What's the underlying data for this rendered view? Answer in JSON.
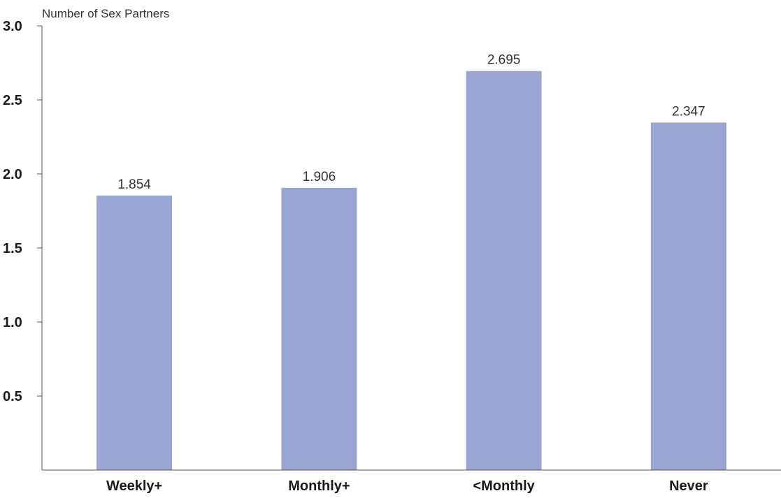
{
  "chart_data": {
    "type": "bar",
    "title": "",
    "xlabel": "",
    "ylabel": "Number of Sex Partners",
    "categories": [
      "Weekly+",
      "Monthly+",
      "<Monthly",
      "Never"
    ],
    "values": [
      1.854,
      1.906,
      2.695,
      2.347
    ],
    "value_labels": [
      "1.854",
      "1.906",
      "2.695",
      "2.347"
    ],
    "ylim": [
      0,
      3.0
    ],
    "yticks": [
      0.5,
      1.0,
      1.5,
      2.0,
      2.5,
      3.0
    ],
    "ytick_labels": [
      "0.5",
      "1.0",
      "1.5",
      "2.0",
      "2.5",
      "3.0"
    ],
    "grid": false,
    "bar_color": "#99a5d2",
    "axis_color": "#555555"
  }
}
